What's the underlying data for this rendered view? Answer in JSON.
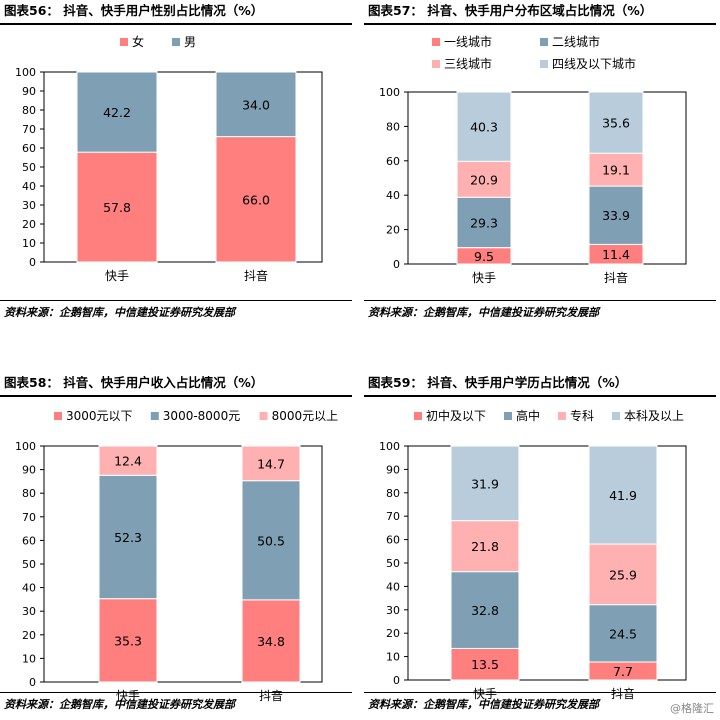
{
  "source_text": "资料来源：企鹅智库，中信建投证券研究发展部",
  "watermark": "@格隆汇",
  "colors": {
    "s1": "#FF7F7F",
    "s2": "#7F9FB5",
    "s3": "#FFB0B0",
    "s4": "#B8CCDC"
  },
  "chart_data": [
    {
      "id": "fig56",
      "type": "bar",
      "stacked": true,
      "title_label": "图表56：",
      "title": "抖音、快手用户性别占比情况（%）",
      "categories": [
        "快手",
        "抖音"
      ],
      "ylim": [
        0,
        100
      ],
      "yticks": [
        "0",
        "10",
        "20",
        "30",
        "40",
        "50",
        "60",
        "70",
        "80",
        "90",
        "100"
      ],
      "series": [
        {
          "name": "女",
          "values": [
            57.8,
            66.0
          ],
          "labels": [
            "57.8",
            "66.0"
          ]
        },
        {
          "name": "男",
          "values": [
            42.2,
            34.0
          ],
          "labels": [
            "42.2",
            "34.0"
          ]
        }
      ],
      "legend_position": "top"
    },
    {
      "id": "fig57",
      "type": "bar",
      "stacked": true,
      "title_label": "图表57：",
      "title": "抖音、快手用户分布区域占比情况（%）",
      "categories": [
        "快手",
        "抖音"
      ],
      "ylim": [
        0,
        100
      ],
      "yticks": [
        "0",
        "20",
        "40",
        "60",
        "80",
        "100"
      ],
      "series": [
        {
          "name": "一线城市",
          "values": [
            9.5,
            11.4
          ],
          "labels": [
            "9.5",
            "11.4"
          ]
        },
        {
          "name": "二线城市",
          "values": [
            29.3,
            33.9
          ],
          "labels": [
            "29.3",
            "33.9"
          ]
        },
        {
          "name": "三线城市",
          "values": [
            20.9,
            19.1
          ],
          "labels": [
            "20.9",
            "19.1"
          ]
        },
        {
          "name": "四线及以下城市",
          "values": [
            40.3,
            35.6
          ],
          "labels": [
            "40.3",
            "35.6"
          ]
        }
      ],
      "legend_position": "top"
    },
    {
      "id": "fig58",
      "type": "bar",
      "stacked": true,
      "title_label": "图表58：",
      "title": "抖音、快手用户收入占比情况（%）",
      "categories": [
        "快手",
        "抖音"
      ],
      "ylim": [
        0,
        100
      ],
      "yticks": [
        "0",
        "10",
        "20",
        "30",
        "40",
        "50",
        "60",
        "70",
        "80",
        "90",
        "100"
      ],
      "series": [
        {
          "name": "3000元以下",
          "values": [
            35.3,
            34.8
          ],
          "labels": [
            "35.3",
            "34.8"
          ]
        },
        {
          "name": "3000-8000元",
          "values": [
            52.3,
            50.5
          ],
          "labels": [
            "52.3",
            "50.5"
          ]
        },
        {
          "name": "8000元以上",
          "values": [
            12.4,
            14.7
          ],
          "labels": [
            "12.4",
            "14.7"
          ]
        }
      ],
      "legend_position": "top"
    },
    {
      "id": "fig59",
      "type": "bar",
      "stacked": true,
      "title_label": "图表59：",
      "title": "抖音、快手用户学历占比情况（%）",
      "categories": [
        "快手",
        "抖音"
      ],
      "ylim": [
        0,
        100
      ],
      "yticks": [
        "0",
        "10",
        "20",
        "30",
        "40",
        "50",
        "60",
        "70",
        "80",
        "90",
        "100"
      ],
      "series": [
        {
          "name": "初中及以下",
          "values": [
            13.5,
            7.7
          ],
          "labels": [
            "13.5",
            "7.7"
          ]
        },
        {
          "name": "高中",
          "values": [
            32.8,
            24.5
          ],
          "labels": [
            "32.8",
            "24.5"
          ]
        },
        {
          "name": "专科",
          "values": [
            21.8,
            25.9
          ],
          "labels": [
            "21.8",
            "25.9"
          ]
        },
        {
          "name": "本科及以上",
          "values": [
            31.9,
            41.9
          ],
          "labels": [
            "31.9",
            "41.9"
          ]
        }
      ],
      "legend_position": "top"
    }
  ]
}
